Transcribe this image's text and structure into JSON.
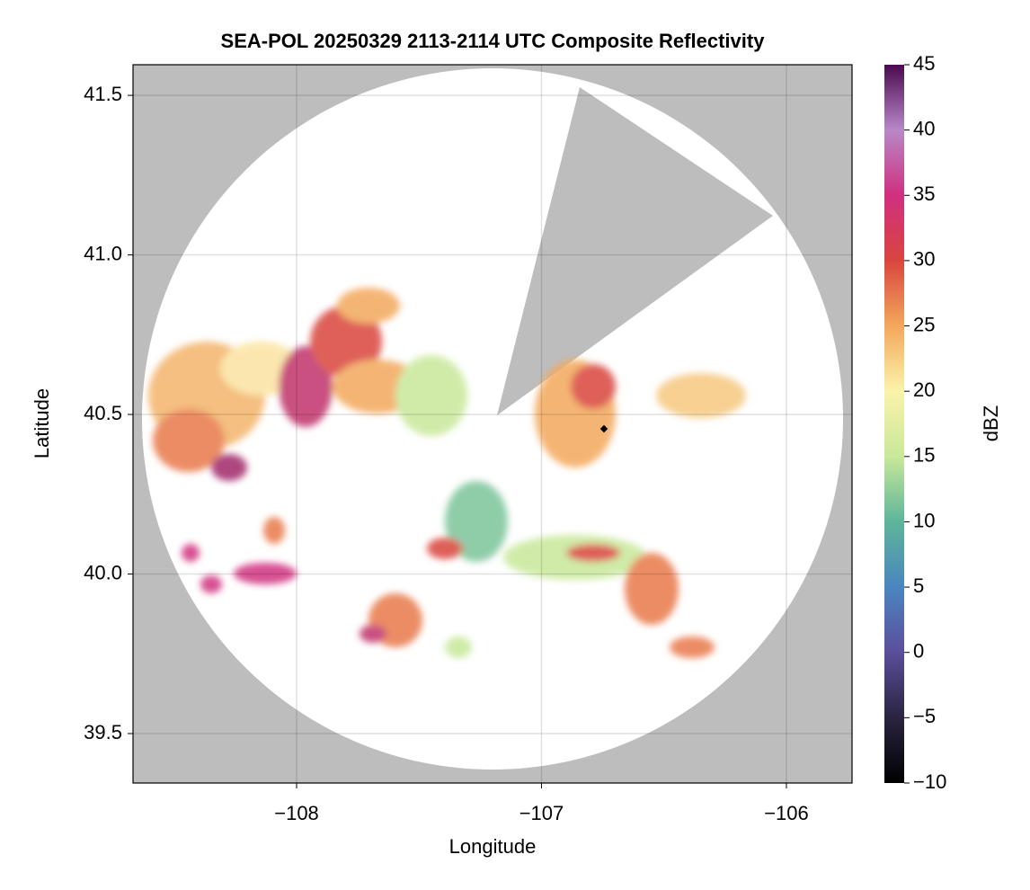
{
  "chart_data": {
    "type": "radar",
    "title": "SEA-POL 20250329 2113-2114 UTC Composite Reflectivity",
    "x_label": "Longitude",
    "y_label": "Latitude",
    "xlim": [
      -108.668,
      -105.732
    ],
    "ylim": [
      39.345,
      41.596
    ],
    "xticks": [
      {
        "value": -108,
        "label": "−108"
      },
      {
        "value": -107,
        "label": "−107"
      },
      {
        "value": -106,
        "label": "−106"
      }
    ],
    "yticks": [
      {
        "value": 39.5,
        "label": "39.5"
      },
      {
        "value": 40.0,
        "label": "40.0"
      },
      {
        "value": 40.5,
        "label": "40.5"
      },
      {
        "value": 41.0,
        "label": "41.0"
      },
      {
        "value": 41.5,
        "label": "41.5"
      }
    ],
    "grid": true,
    "background_color": "#bdbdbd",
    "colorbar": {
      "label": "dBZ",
      "lim": [
        -10,
        45
      ],
      "ticks": [
        {
          "value": -10,
          "label": "−10"
        },
        {
          "value": -5,
          "label": "−5"
        },
        0,
        5,
        10,
        15,
        20,
        25,
        30,
        35,
        40,
        45
      ],
      "colors": [
        "#000000",
        "#2a2440",
        "#5b4e9a",
        "#4a86c0",
        "#5db59a",
        "#c8e89a",
        "#fbf3aa",
        "#f3a85c",
        "#d9453e",
        "#d0307f",
        "#b888c8",
        "#4a0a4e"
      ]
    }
  }
}
